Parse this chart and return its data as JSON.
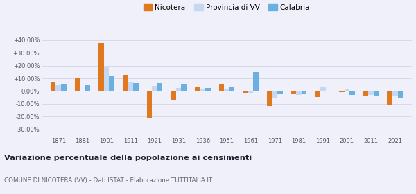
{
  "x_labels": [
    "1871",
    "1881",
    "1901",
    "1911",
    "1921",
    "1931",
    "1936",
    "1951",
    "1961",
    "1971",
    "1981",
    "1991",
    "2001",
    "2011",
    "2021"
  ],
  "nicotera": [
    7.5,
    10.5,
    37.5,
    12.5,
    -21.0,
    -7.5,
    3.5,
    5.5,
    -1.5,
    -11.5,
    -2.5,
    -4.5,
    -1.0,
    -3.5,
    -10.5
  ],
  "provincia_vv": [
    5.0,
    0.5,
    19.0,
    6.5,
    4.0,
    2.5,
    2.0,
    2.0,
    -1.5,
    -5.5,
    -3.0,
    3.5,
    1.5,
    -3.0,
    -3.5
  ],
  "calabria": [
    5.5,
    5.0,
    12.0,
    6.0,
    6.0,
    5.5,
    2.5,
    3.0,
    15.0,
    -2.0,
    -2.5,
    0.0,
    -3.0,
    -3.5,
    -5.0
  ],
  "color_nicotera": "#e07820",
  "color_provincia": "#c5d8f0",
  "color_calabria": "#6ab0e0",
  "title": "Variazione percentuale della popolazione ai censimenti",
  "subtitle": "COMUNE DI NICOTERA (VV) - Dati ISTAT - Elaborazione TUTTITALIA.IT",
  "ylim": [
    -35,
    47
  ],
  "yticks": [
    -30,
    -20,
    -10,
    0,
    10,
    20,
    30,
    40
  ],
  "ytick_labels": [
    "-30.00%",
    "-20.00%",
    "-10.00%",
    "0.00%",
    "+10.00%",
    "+20.00%",
    "+30.00%",
    "+40.00%"
  ],
  "background_color": "#f0f0fa",
  "grid_color": "#d8d8ec",
  "bar_width": 0.22
}
